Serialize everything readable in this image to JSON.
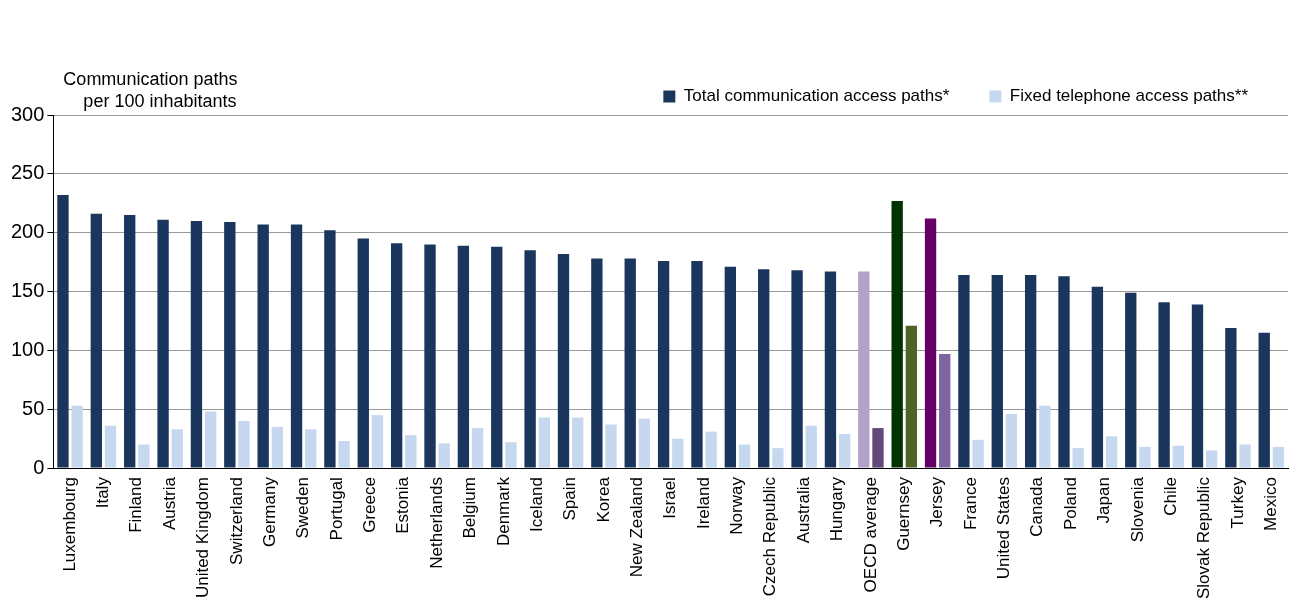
{
  "chart_data": {
    "type": "bar",
    "ylabel": "Communication paths per 100 inhabitants",
    "categories": [
      "Luxembourg",
      "Italy",
      "Finland",
      "Austria",
      "United Kingdom",
      "Switzerland",
      "Germany",
      "Sweden",
      "Portugal",
      "Greece",
      "Estonia",
      "Netherlands",
      "Belgium",
      "Denmark",
      "Iceland",
      "Spain",
      "Korea",
      "New Zealand",
      "Israel",
      "Ireland",
      "Norway",
      "Czech Republic",
      "Australia",
      "Hungary",
      "OECD average",
      "Guernsey",
      "Jersey",
      "France",
      "United States",
      "Canada",
      "Poland",
      "Japan",
      "Slovenia",
      "Chile",
      "Slovak Republic",
      "Turkey",
      "Mexico"
    ],
    "series": [
      {
        "name": "Total communication access paths*",
        "color": "#1b365d",
        "values": [
          232,
          216,
          215,
          211,
          210,
          209,
          207,
          207,
          202,
          195,
          191,
          190,
          189,
          188,
          185,
          182,
          178,
          178,
          176,
          176,
          171,
          169,
          168,
          167,
          167,
          227,
          212,
          164,
          164,
          164,
          163,
          154,
          149,
          141,
          139,
          119,
          115
        ],
        "colors": [
          "#1b365d",
          "#1b365d",
          "#1b365d",
          "#1b365d",
          "#1b365d",
          "#1b365d",
          "#1b365d",
          "#1b365d",
          "#1b365d",
          "#1b365d",
          "#1b365d",
          "#1b365d",
          "#1b365d",
          "#1b365d",
          "#1b365d",
          "#1b365d",
          "#1b365d",
          "#1b365d",
          "#1b365d",
          "#1b365d",
          "#1b365d",
          "#1b365d",
          "#1b365d",
          "#1b365d",
          "#b1a3c8",
          "#003300",
          "#660066",
          "#1b365d",
          "#1b365d",
          "#1b365d",
          "#1b365d",
          "#1b365d",
          "#1b365d",
          "#1b365d",
          "#1b365d",
          "#1b365d",
          "#1b365d"
        ]
      },
      {
        "name": "Fixed telephone access paths**",
        "color": "#c6d8ef",
        "values": [
          53,
          36,
          20,
          33,
          48,
          40,
          35,
          33,
          23,
          45,
          28,
          21,
          34,
          22,
          43,
          43,
          37,
          42,
          25,
          31,
          20,
          17,
          36,
          29,
          34,
          121,
          97,
          24,
          46,
          53,
          17,
          27,
          18,
          19,
          15,
          20,
          18
        ],
        "colors": [
          "#c6d8ef",
          "#c6d8ef",
          "#c6d8ef",
          "#c6d8ef",
          "#c6d8ef",
          "#c6d8ef",
          "#c6d8ef",
          "#c6d8ef",
          "#c6d8ef",
          "#c6d8ef",
          "#c6d8ef",
          "#c6d8ef",
          "#c6d8ef",
          "#c6d8ef",
          "#c6d8ef",
          "#c6d8ef",
          "#c6d8ef",
          "#c6d8ef",
          "#c6d8ef",
          "#c6d8ef",
          "#c6d8ef",
          "#c6d8ef",
          "#c6d8ef",
          "#c6d8ef",
          "#614a7b",
          "#4f6228",
          "#8064a2",
          "#c6d8ef",
          "#c6d8ef",
          "#c6d8ef",
          "#c6d8ef",
          "#c6d8ef",
          "#c6d8ef",
          "#c6d8ef",
          "#c6d8ef",
          "#c6d8ef",
          "#c6d8ef"
        ]
      }
    ],
    "ylim": [
      0,
      300
    ],
    "yticks": [
      0,
      50,
      100,
      150,
      200,
      250,
      300
    ],
    "grid": "y",
    "legend": "top right"
  }
}
